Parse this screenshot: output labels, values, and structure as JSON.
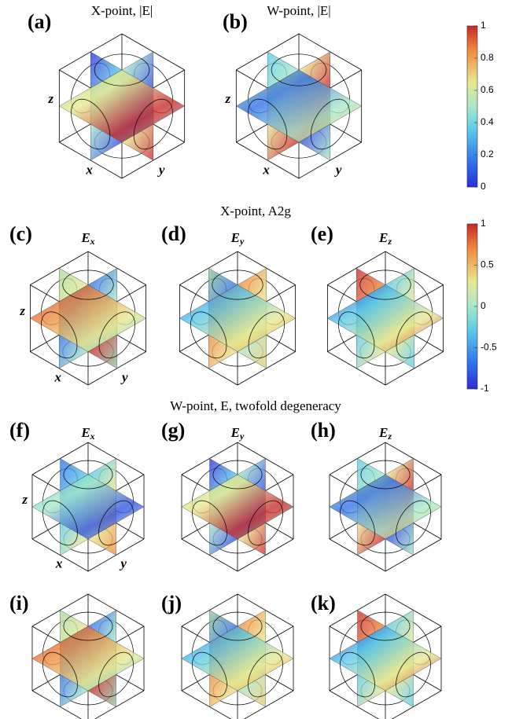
{
  "row1": {
    "panels": [
      {
        "label": "(a)",
        "title": "X-point, |E|",
        "axes": [
          "z",
          "x",
          "y"
        ]
      },
      {
        "label": "(b)",
        "title": "W-point, |E|",
        "axes": [
          "z",
          "x",
          "y"
        ]
      }
    ],
    "colorbar": {
      "ticks": [
        0,
        0.2,
        0.4,
        0.6,
        0.8,
        1
      ]
    }
  },
  "row2": {
    "title": "X-point, A2g",
    "panels": [
      {
        "label": "(c)",
        "field": "E",
        "component": "x",
        "axes": [
          "z",
          "x",
          "y"
        ]
      },
      {
        "label": "(d)",
        "field": "E",
        "component": "y"
      },
      {
        "label": "(e)",
        "field": "E",
        "component": "z"
      }
    ],
    "colorbar": {
      "ticks": [
        -1,
        -0.5,
        0,
        0.5,
        1
      ]
    }
  },
  "row3": {
    "title": "W-point, E, twofold degeneracy",
    "panels": [
      {
        "label": "(f)",
        "field": "E",
        "component": "x",
        "axes": [
          "z",
          "x",
          "y"
        ]
      },
      {
        "label": "(g)",
        "field": "E",
        "component": "y"
      },
      {
        "label": "(h)",
        "field": "E",
        "component": "z"
      },
      {
        "label": "(i)"
      },
      {
        "label": "(j)"
      },
      {
        "label": "(k)"
      }
    ]
  }
}
